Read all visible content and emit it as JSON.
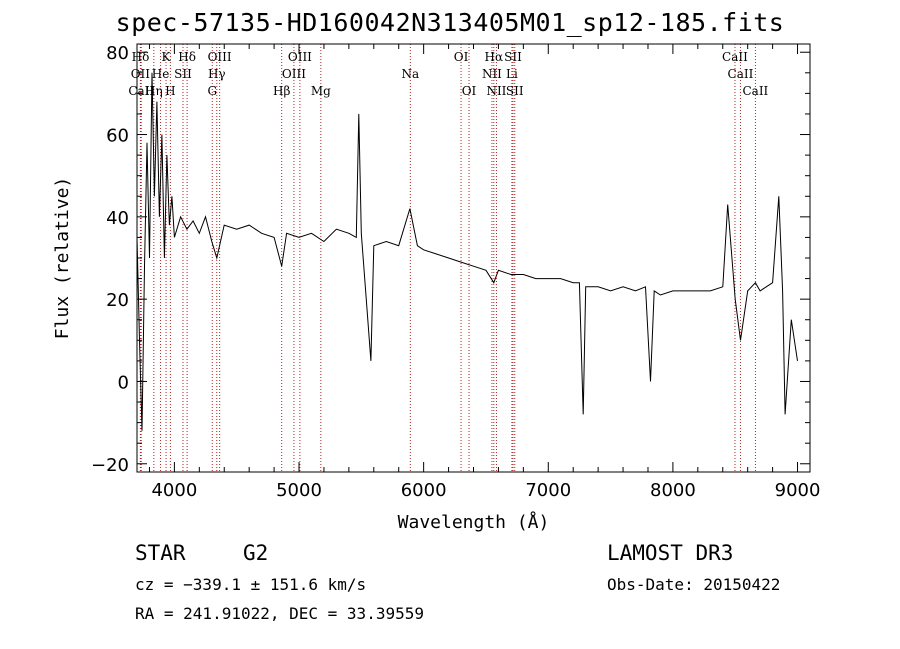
{
  "chart_data": {
    "type": "line",
    "title": "spec-57135-HD160042N313405M01_sp12-185.fits",
    "xlabel": "Wavelength (Å)",
    "ylabel": "Flux (relative)",
    "xlim": [
      3700,
      9100
    ],
    "ylim": [
      -22,
      82
    ],
    "xticks": [
      4000,
      5000,
      6000,
      7000,
      8000,
      9000
    ],
    "yticks": [
      -20,
      0,
      20,
      40,
      60,
      80
    ],
    "grid": false,
    "series": [
      {
        "x": [
          3700,
          3720,
          3740,
          3760,
          3780,
          3800,
          3820,
          3840,
          3860,
          3880,
          3900,
          3920,
          3940,
          3960,
          3980,
          4000,
          4050,
          4100,
          4150,
          4200,
          4250,
          4300,
          4340,
          4400,
          4500,
          4600,
          4700,
          4800,
          4861,
          4900,
          5000,
          5100,
          5200,
          5300,
          5400,
          5460,
          5480,
          5500,
          5577,
          5600,
          5700,
          5800,
          5890,
          5950,
          6000,
          6100,
          6200,
          6300,
          6400,
          6500,
          6563,
          6600,
          6700,
          6800,
          6900,
          7000,
          7100,
          7200,
          7250,
          7280,
          7300,
          7400,
          7500,
          7600,
          7700,
          7780,
          7820,
          7850,
          7900,
          8000,
          8100,
          8200,
          8300,
          8400,
          8440,
          8500,
          8542,
          8600,
          8662,
          8700,
          8800,
          8850,
          8880,
          8900,
          8950,
          9000
        ],
        "values": [
          35,
          10,
          -12,
          28,
          58,
          30,
          75,
          45,
          68,
          40,
          60,
          30,
          55,
          38,
          45,
          35,
          40,
          37,
          39,
          36,
          40,
          34,
          30,
          38,
          37,
          38,
          36,
          35,
          28,
          36,
          35,
          36,
          34,
          37,
          36,
          35,
          65,
          36,
          5,
          33,
          34,
          33,
          42,
          33,
          32,
          31,
          30,
          29,
          28,
          27,
          24,
          27,
          26,
          26,
          25,
          25,
          25,
          24,
          24,
          -8,
          23,
          23,
          22,
          23,
          22,
          23,
          0,
          22,
          21,
          22,
          22,
          22,
          22,
          23,
          43,
          20,
          10,
          22,
          24,
          22,
          24,
          45,
          22,
          -8,
          15,
          5
        ]
      }
    ],
    "lines": [
      {
        "name": "Hδ",
        "x": 3728,
        "row": 1
      },
      {
        "name": "OII",
        "x": 3727,
        "row": 2
      },
      {
        "name": "CaII",
        "x": 3734,
        "row": 3
      },
      {
        "name": "K",
        "x": 3933,
        "row": 1
      },
      {
        "name": "He",
        "x": 3889,
        "row": 2
      },
      {
        "name": "Hη",
        "x": 3835,
        "row": 3
      },
      {
        "name": "SII",
        "x": 4069,
        "row": 2
      },
      {
        "name": "H",
        "x": 3968,
        "row": 3
      },
      {
        "name": "Hδ",
        "x": 4102,
        "row": 1
      },
      {
        "name": "OIII",
        "x": 4363,
        "row": 1
      },
      {
        "name": "Hγ",
        "x": 4340,
        "row": 2
      },
      {
        "name": "G",
        "x": 4304,
        "row": 3
      },
      {
        "name": "Hβ",
        "x": 4861,
        "row": 3
      },
      {
        "name": "OIII",
        "x": 5007,
        "row": 1
      },
      {
        "name": "OIII",
        "x": 4959,
        "row": 2
      },
      {
        "name": "Mg",
        "x": 5175,
        "row": 3
      },
      {
        "name": "Na",
        "x": 5893,
        "row": 2
      },
      {
        "name": "OI",
        "x": 6300,
        "row": 1
      },
      {
        "name": "OI",
        "x": 6364,
        "row": 3
      },
      {
        "name": "Hα",
        "x": 6563,
        "row": 1
      },
      {
        "name": "NII",
        "x": 6548,
        "row": 2
      },
      {
        "name": "NII",
        "x": 6584,
        "row": 3
      },
      {
        "name": "SII",
        "x": 6717,
        "row": 1
      },
      {
        "name": "Li",
        "x": 6708,
        "row": 2
      },
      {
        "name": "SII",
        "x": 6731,
        "row": 3
      },
      {
        "name": "CaII",
        "x": 8498,
        "row": 1
      },
      {
        "name": "CaII",
        "x": 8542,
        "row": 2
      },
      {
        "name": "CaII",
        "x": 8662,
        "row": 3
      }
    ]
  },
  "footer": {
    "class": "STAR",
    "subclass": "G2",
    "survey": "LAMOST DR3",
    "cz": "cz = −339.1 ± 151.6 km/s",
    "obsdate": "Obs-Date: 20150422",
    "radec": "RA = 241.91022, DEC =  33.39559"
  },
  "colors": {
    "lines": "#b22222",
    "spectrum": "#000000"
  }
}
